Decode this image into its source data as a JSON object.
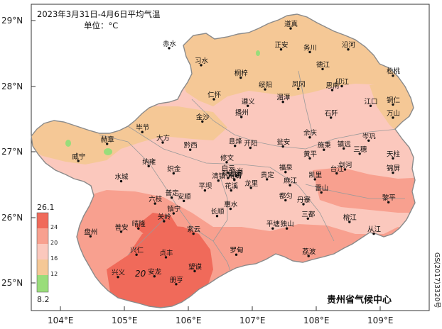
{
  "title": "2023年3月31日-4月6日平均气温",
  "unit": "单位：°C",
  "source": "贵州省气候中心",
  "map_number": "GS(2017)3320号",
  "lat_labels": [
    {
      "value": 29,
      "text": "29°N"
    },
    {
      "value": 28,
      "text": "28°N"
    },
    {
      "value": 27,
      "text": "27°N"
    },
    {
      "value": 26,
      "text": "26°N"
    },
    {
      "value": 25,
      "text": "25°N"
    }
  ],
  "lon_labels": [
    {
      "value": 104,
      "text": "104°E"
    },
    {
      "value": 105,
      "text": "105°E"
    },
    {
      "value": 106,
      "text": "106°E"
    },
    {
      "value": 107,
      "text": "107°E"
    },
    {
      "value": 108,
      "text": "108°E"
    },
    {
      "value": 109,
      "text": "109°E"
    }
  ],
  "legend": {
    "max_label": "26.1",
    "min_label": "8.2",
    "ticks": [
      "24",
      "20",
      "16",
      "12"
    ],
    "bands": [
      {
        "color": "#f06a5a"
      },
      {
        "color": "#f8a08f"
      },
      {
        "color": "#fbc8bd"
      },
      {
        "color": "#f5c896"
      },
      {
        "color": "#99dd7a"
      }
    ]
  },
  "contour_label": "20",
  "colors": {
    "warm_24": "#f06a5a",
    "warm_20": "#f8a08f",
    "mild_16": "#fbc8bd",
    "cool_12": "#f5c896",
    "cold": "#99dd7a",
    "province_fill_base": "#fbc8bd"
  },
  "cities": [
    {
      "name": "赤水",
      "lon": 105.7,
      "lat": 28.58
    },
    {
      "name": "习水",
      "lon": 106.2,
      "lat": 28.32
    },
    {
      "name": "道真",
      "lon": 107.6,
      "lat": 28.88
    },
    {
      "name": "正安",
      "lon": 107.45,
      "lat": 28.56
    },
    {
      "name": "务川",
      "lon": 107.9,
      "lat": 28.52
    },
    {
      "name": "沿河",
      "lon": 108.5,
      "lat": 28.56
    },
    {
      "name": "德江",
      "lon": 108.1,
      "lat": 28.26
    },
    {
      "name": "松桃",
      "lon": 109.2,
      "lat": 28.16
    },
    {
      "name": "桐梓",
      "lon": 106.82,
      "lat": 28.13
    },
    {
      "name": "绥阳",
      "lon": 107.2,
      "lat": 27.95
    },
    {
      "name": "凤冈",
      "lon": 107.72,
      "lat": 27.96
    },
    {
      "name": "思南",
      "lon": 108.25,
      "lat": 27.94
    },
    {
      "name": "印江",
      "lon": 108.4,
      "lat": 28.0
    },
    {
      "name": "仁怀",
      "lon": 106.4,
      "lat": 27.8
    },
    {
      "name": "遵义",
      "lon": 106.93,
      "lat": 27.7
    },
    {
      "name": "湄潭",
      "lon": 107.48,
      "lat": 27.76
    },
    {
      "name": "江口",
      "lon": 108.85,
      "lat": 27.7
    },
    {
      "name": "铜仁",
      "lon": 109.2,
      "lat": 27.72
    },
    {
      "name": "金沙",
      "lon": 106.22,
      "lat": 27.46
    },
    {
      "name": "播州",
      "lon": 106.83,
      "lat": 27.53
    },
    {
      "name": "石阡",
      "lon": 108.23,
      "lat": 27.52
    },
    {
      "name": "万山",
      "lon": 109.2,
      "lat": 27.52
    },
    {
      "name": "毕节",
      "lon": 105.28,
      "lat": 27.3
    },
    {
      "name": "大方",
      "lon": 105.6,
      "lat": 27.14
    },
    {
      "name": "息烽",
      "lon": 106.73,
      "lat": 27.09
    },
    {
      "name": "余庆",
      "lon": 107.9,
      "lat": 27.22
    },
    {
      "name": "岑巩",
      "lon": 108.82,
      "lat": 27.17
    },
    {
      "name": "赫章",
      "lon": 104.73,
      "lat": 27.12
    },
    {
      "name": "黔西",
      "lon": 106.03,
      "lat": 27.03
    },
    {
      "name": "开阳",
      "lon": 106.97,
      "lat": 27.06
    },
    {
      "name": "瓮安",
      "lon": 107.48,
      "lat": 27.08
    },
    {
      "name": "施秉",
      "lon": 108.12,
      "lat": 27.03
    },
    {
      "name": "镇远",
      "lon": 108.43,
      "lat": 27.05
    },
    {
      "name": "三穗",
      "lon": 108.68,
      "lat": 26.97
    },
    {
      "name": "天柱",
      "lon": 109.2,
      "lat": 26.9
    },
    {
      "name": "威宁",
      "lon": 104.28,
      "lat": 26.86
    },
    {
      "name": "修文",
      "lon": 106.6,
      "lat": 26.84
    },
    {
      "name": "黄平",
      "lon": 107.9,
      "lat": 26.9
    },
    {
      "name": "纳雍",
      "lon": 105.38,
      "lat": 26.78
    },
    {
      "name": "织金",
      "lon": 105.77,
      "lat": 26.67
    },
    {
      "name": "白云",
      "lon": 106.62,
      "lat": 26.68
    },
    {
      "name": "乌当",
      "lon": 106.75,
      "lat": 26.63
    },
    {
      "name": "清镇",
      "lon": 106.47,
      "lat": 26.56
    },
    {
      "name": "观山湖",
      "lon": 106.62,
      "lat": 26.6
    },
    {
      "name": "云岩",
      "lon": 106.72,
      "lat": 26.58
    },
    {
      "name": "南明",
      "lon": 106.72,
      "lat": 26.57
    },
    {
      "name": "贵定",
      "lon": 107.23,
      "lat": 26.58
    },
    {
      "name": "福泉",
      "lon": 107.52,
      "lat": 26.69
    },
    {
      "name": "凯里",
      "lon": 107.98,
      "lat": 26.58
    },
    {
      "name": "台江",
      "lon": 108.32,
      "lat": 26.67
    },
    {
      "name": "剑河",
      "lon": 108.45,
      "lat": 26.73
    },
    {
      "name": "锦屏",
      "lon": 109.2,
      "lat": 26.68
    },
    {
      "name": "水城",
      "lon": 104.95,
      "lat": 26.55
    },
    {
      "name": "平坝",
      "lon": 106.26,
      "lat": 26.41
    },
    {
      "name": "花溪",
      "lon": 106.67,
      "lat": 26.41
    },
    {
      "name": "龙里",
      "lon": 106.98,
      "lat": 26.45
    },
    {
      "name": "麻江",
      "lon": 107.59,
      "lat": 26.49
    },
    {
      "name": "雷山",
      "lon": 108.08,
      "lat": 26.38
    },
    {
      "name": "普定",
      "lon": 105.74,
      "lat": 26.3
    },
    {
      "name": "安顺",
      "lon": 105.93,
      "lat": 26.25
    },
    {
      "name": "都匀",
      "lon": 107.52,
      "lat": 26.26
    },
    {
      "name": "丹寨",
      "lon": 107.8,
      "lat": 26.2
    },
    {
      "name": "六枝",
      "lon": 105.48,
      "lat": 26.21
    },
    {
      "name": "惠水",
      "lon": 106.66,
      "lat": 26.13
    },
    {
      "name": "长顺",
      "lon": 106.45,
      "lat": 26.02
    },
    {
      "name": "榕江",
      "lon": 108.52,
      "lat": 25.93
    },
    {
      "name": "黎平",
      "lon": 109.13,
      "lat": 26.23
    },
    {
      "name": "镇宁",
      "lon": 105.77,
      "lat": 26.06
    },
    {
      "name": "关岭",
      "lon": 105.62,
      "lat": 25.94
    },
    {
      "name": "三都",
      "lon": 107.87,
      "lat": 25.98
    },
    {
      "name": "晴隆",
      "lon": 105.22,
      "lat": 25.83
    },
    {
      "name": "盘州",
      "lon": 104.47,
      "lat": 25.71
    },
    {
      "name": "普安",
      "lon": 104.95,
      "lat": 25.78
    },
    {
      "name": "紫云",
      "lon": 106.08,
      "lat": 25.75
    },
    {
      "name": "平塘",
      "lon": 107.32,
      "lat": 25.83
    },
    {
      "name": "独山",
      "lon": 107.54,
      "lat": 25.83
    },
    {
      "name": "从江",
      "lon": 108.9,
      "lat": 25.75
    },
    {
      "name": "兴仁",
      "lon": 105.19,
      "lat": 25.43
    },
    {
      "name": "贞丰",
      "lon": 105.65,
      "lat": 25.39
    },
    {
      "name": "罗甸",
      "lon": 106.75,
      "lat": 25.43
    },
    {
      "name": "荔波",
      "lon": 107.88,
      "lat": 25.41
    },
    {
      "name": "望谟",
      "lon": 106.1,
      "lat": 25.18
    },
    {
      "name": "兴义",
      "lon": 104.9,
      "lat": 25.09
    },
    {
      "name": "安龙",
      "lon": 105.47,
      "lat": 25.1
    },
    {
      "name": "册亨",
      "lon": 105.81,
      "lat": 24.98
    }
  ]
}
